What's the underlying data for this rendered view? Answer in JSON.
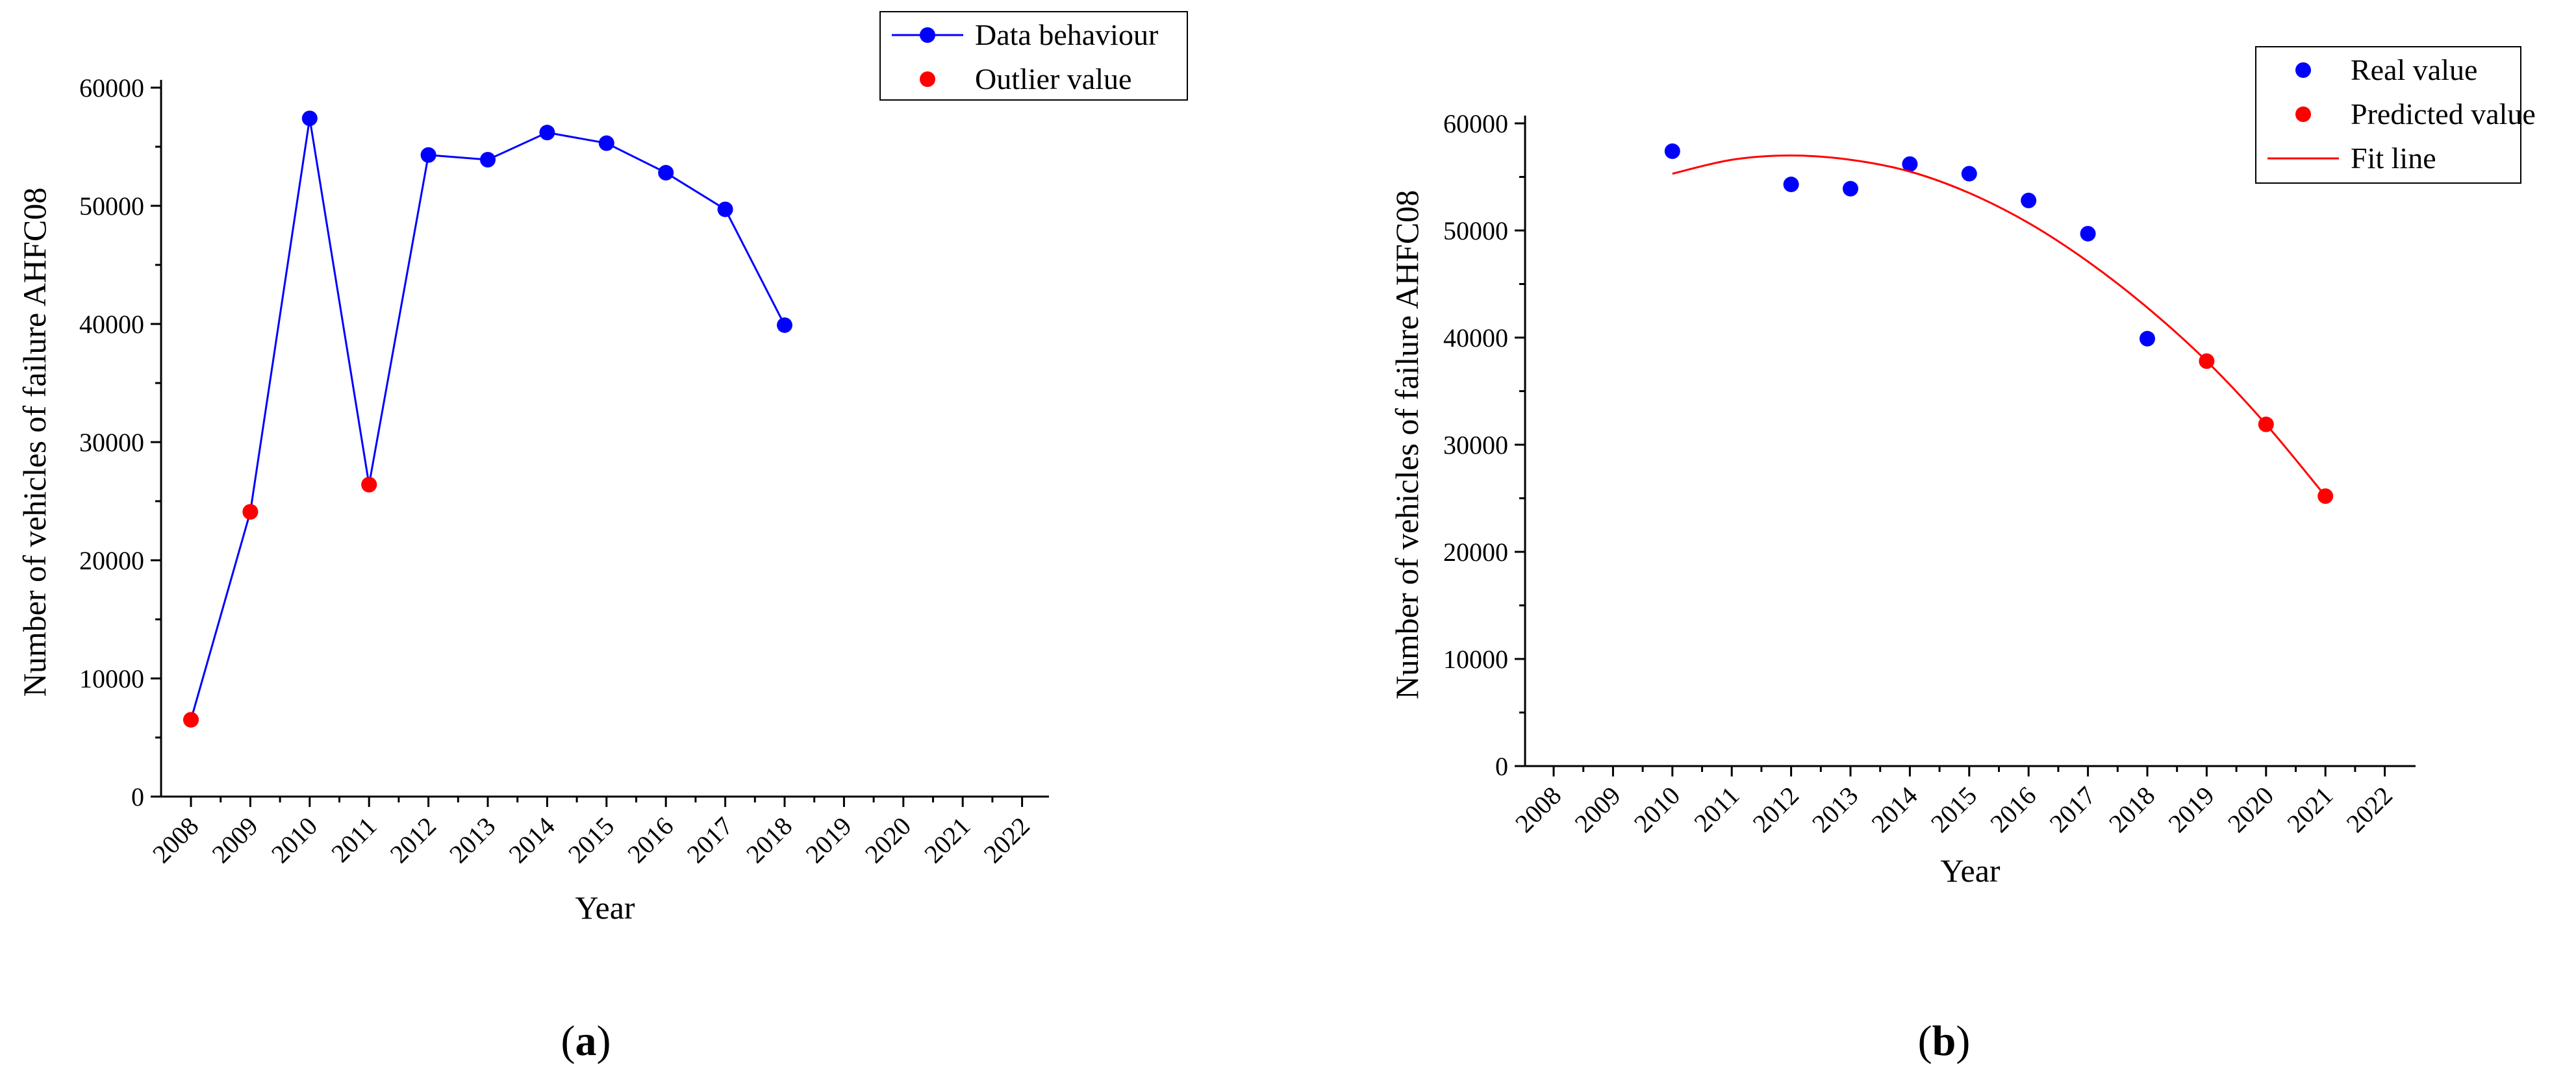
{
  "colors": {
    "series_blue": "#0000ff",
    "series_red": "#ff0000",
    "axis": "#000000"
  },
  "chart_data": [
    {
      "type": "line",
      "panel_label": "a",
      "xlabel": "Year",
      "ylabel": "Number of vehicles of failure AHFC08",
      "x_ticks": [
        "2008",
        "2009",
        "2010",
        "2011",
        "2012",
        "2013",
        "2014",
        "2015",
        "2016",
        "2017",
        "2018",
        "2019",
        "2020",
        "2021",
        "2022"
      ],
      "y_ticks": [
        0,
        10000,
        20000,
        30000,
        40000,
        50000,
        60000
      ],
      "ylim": [
        0,
        60000
      ],
      "xlim": [
        2008,
        2022
      ],
      "legend_position": "top-right",
      "series": [
        {
          "name": "Data behaviour",
          "color": "#0000ff",
          "style": "line+markers",
          "x": [
            2008,
            2009,
            2010,
            2011,
            2012,
            2013,
            2014,
            2015,
            2016,
            2017,
            2018
          ],
          "y": [
            6500,
            24100,
            57400,
            26400,
            54300,
            53900,
            56200,
            55300,
            52800,
            49700,
            39900
          ],
          "marker_colors": [
            "#ff0000",
            "#ff0000",
            "#0000ff",
            "#ff0000",
            "#0000ff",
            "#0000ff",
            "#0000ff",
            "#0000ff",
            "#0000ff",
            "#0000ff",
            "#0000ff"
          ]
        },
        {
          "name": "Outlier value",
          "color": "#ff0000",
          "style": "markers",
          "x": [
            2008,
            2009,
            2011
          ],
          "y": [
            6500,
            24100,
            26400
          ]
        }
      ]
    },
    {
      "type": "scatter",
      "panel_label": "b",
      "xlabel": "Year",
      "ylabel": "Number of vehicles of failure AHFC08",
      "x_ticks": [
        "2008",
        "2009",
        "2010",
        "2011",
        "2012",
        "2013",
        "2014",
        "2015",
        "2016",
        "2017",
        "2018",
        "2019",
        "2020",
        "2021",
        "2022"
      ],
      "y_ticks": [
        0,
        10000,
        20000,
        30000,
        40000,
        50000,
        60000
      ],
      "ylim": [
        0,
        60000
      ],
      "xlim": [
        2008,
        2022
      ],
      "legend_position": "top-right",
      "series": [
        {
          "name": "Real value",
          "color": "#0000ff",
          "style": "markers",
          "x": [
            2010,
            2012,
            2013,
            2014,
            2015,
            2016,
            2017,
            2018
          ],
          "y": [
            57400,
            54300,
            53900,
            56200,
            55300,
            52800,
            49700,
            39900
          ]
        },
        {
          "name": "Predicted value",
          "color": "#ff0000",
          "style": "markers",
          "x": [
            2019,
            2020,
            2021
          ],
          "y": [
            37800,
            31900,
            25200
          ]
        },
        {
          "name": "Fit line",
          "color": "#ff0000",
          "style": "line",
          "x": [
            2010,
            2011,
            2012,
            2013,
            2014,
            2015,
            2016,
            2017,
            2018,
            2019,
            2020,
            2021
          ],
          "y": [
            55300,
            56600,
            57000,
            56600,
            55500,
            53500,
            50700,
            47100,
            42800,
            37800,
            31900,
            25200
          ]
        }
      ]
    }
  ]
}
